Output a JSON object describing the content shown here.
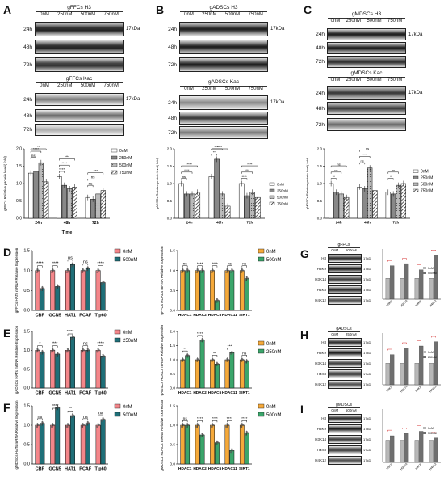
{
  "panels": {
    "A": {
      "letter": "A",
      "top_title": "gFFCs H3",
      "bottom_title": "gFFCs Kac",
      "conc": [
        "0nM",
        "250nM",
        "500nM",
        "750nM"
      ],
      "times": [
        "24h",
        "48h",
        "72h"
      ],
      "kda": "17kDa"
    },
    "B": {
      "letter": "B",
      "top_title": "gADSCs H3",
      "bottom_title": "gADSCs Kac",
      "conc": [
        "0nM",
        "250nM",
        "500nM",
        "750nM"
      ],
      "times": [
        "24h",
        "48h",
        "72h"
      ],
      "kda": "17kDa"
    },
    "C": {
      "letter": "C",
      "top_title": "gMDSCs H3",
      "bottom_title": "gMDSCs Kac",
      "conc": [
        "0nM",
        "250nM",
        "500nM",
        "750nM"
      ],
      "times": [
        "24h",
        "48h",
        "72h"
      ],
      "kda": "17kDa"
    },
    "D": {
      "letter": "D"
    },
    "E": {
      "letter": "E"
    },
    "F": {
      "letter": "F"
    },
    "G": {
      "letter": "G",
      "title": "gFFCs",
      "conc": [
        "0nM",
        "500nM"
      ],
      "bands": [
        "H3",
        "H3K9",
        "H3K14",
        "H4K8",
        "H4K12"
      ],
      "kda": "17kD"
    },
    "H": {
      "letter": "H",
      "title": "gADSCs",
      "conc": [
        "0nM",
        "250nM"
      ],
      "bands": [
        "H3",
        "H3K9",
        "H3K14",
        "H4K8",
        "H4K12"
      ],
      "kda": "17kD"
    },
    "I": {
      "letter": "I",
      "title": "gMDSCs",
      "conc": [
        "0nM",
        "500nM"
      ],
      "bands": [
        "H3",
        "H3K9",
        "H3K14",
        "H4K8",
        "H4K12"
      ],
      "kda": "17kD"
    }
  },
  "chart_data": [
    {
      "id": "A-bar",
      "type": "bar",
      "ylabel": "gFFCs Relative protein level( fold)",
      "xlabel": "Time",
      "categories": [
        "24h",
        "48h",
        "72h"
      ],
      "ylim": [
        0,
        2.0
      ],
      "legend": [
        "0nM",
        "250nM",
        "500nM",
        "750nM"
      ],
      "series": [
        {
          "name": "0nM",
          "values": [
            1.3,
            1.2,
            0.6
          ]
        },
        {
          "name": "250nM",
          "values": [
            1.35,
            0.95,
            0.55
          ]
        },
        {
          "name": "500nM",
          "values": [
            1.6,
            0.85,
            0.7
          ]
        },
        {
          "name": "750nM",
          "values": [
            1.05,
            0.9,
            0.8
          ]
        }
      ],
      "sig": [
        "ns",
        "****",
        "**",
        "****",
        "****",
        "**",
        "ns",
        "ns",
        "***"
      ]
    },
    {
      "id": "B-bar",
      "type": "bar",
      "ylabel": "gADSCs Relative protein level( fold)",
      "categories": [
        "24h",
        "48h",
        "72h"
      ],
      "ylim": [
        0,
        2.0
      ],
      "legend": [
        "0nM",
        "250nM",
        "500nM",
        "750nM"
      ],
      "series": [
        {
          "name": "0nM",
          "values": [
            1.0,
            1.2,
            1.0
          ]
        },
        {
          "name": "250nM",
          "values": [
            0.7,
            1.7,
            0.65
          ]
        },
        {
          "name": "500nM",
          "values": [
            0.7,
            0.7,
            0.75
          ]
        },
        {
          "name": "750nM",
          "values": [
            0.75,
            0.35,
            0.6
          ]
        }
      ],
      "sig": [
        "ns",
        "****",
        "****",
        "**",
        "****",
        "****",
        "****",
        "****",
        "****"
      ]
    },
    {
      "id": "C-bar",
      "type": "bar",
      "ylabel": "gMDSCs Relative protein level( fold)",
      "categories": [
        "24h",
        "48h",
        "72h"
      ],
      "ylim": [
        0,
        2.0
      ],
      "legend": [
        "0nM",
        "250nM",
        "500nM",
        "750nM"
      ],
      "series": [
        {
          "name": "0nM",
          "values": [
            1.0,
            0.9,
            0.75
          ]
        },
        {
          "name": "250nM",
          "values": [
            0.75,
            0.85,
            0.7
          ]
        },
        {
          "name": "500nM",
          "values": [
            0.7,
            1.45,
            0.95
          ]
        },
        {
          "name": "750nM",
          "values": [
            0.6,
            0.8,
            1.0
          ]
        }
      ],
      "sig": [
        "**",
        "ns",
        "ns",
        "ns",
        "***",
        "ns",
        "*",
        "ns"
      ]
    },
    {
      "id": "D-hat",
      "type": "bar",
      "ylabel": "gFFCs HATs mRNA Relative Expression",
      "categories": [
        "CBP",
        "GCN5",
        "HAT1",
        "PCAF",
        "Tip60"
      ],
      "ylim": [
        0,
        1.5
      ],
      "legend": [
        "0nM",
        "500nM"
      ],
      "colors": [
        "#f4868a",
        "#1f6f78"
      ],
      "series": [
        {
          "name": "0nM",
          "values": [
            1.0,
            1.0,
            1.0,
            1.0,
            1.0
          ]
        },
        {
          "name": "500nM",
          "values": [
            0.55,
            0.6,
            1.15,
            1.05,
            0.7
          ]
        }
      ],
      "sig": [
        "****",
        "****",
        "ns",
        "ns",
        "****"
      ]
    },
    {
      "id": "D-hdac",
      "type": "bar",
      "ylabel": "gFFCs HDACs mRNA Relative Expression",
      "categories": [
        "HDAC1",
        "HDAC2",
        "HDAC6",
        "HDAC11",
        "SIRT1"
      ],
      "ylim": [
        0,
        1.5
      ],
      "legend": [
        "0nM",
        "500nM"
      ],
      "colors": [
        "#f5a93a",
        "#3ba56b"
      ],
      "series": [
        {
          "name": "0nM",
          "values": [
            1.0,
            1.0,
            1.0,
            1.0,
            1.0
          ]
        },
        {
          "name": "500nM",
          "values": [
            1.0,
            1.0,
            0.25,
            1.0,
            0.8
          ]
        }
      ],
      "sig": [
        "ns",
        "****",
        "****",
        "ns",
        "ns"
      ]
    },
    {
      "id": "E-hat",
      "type": "bar",
      "ylabel": "gADSCs HATs mRNA Relative Expression",
      "categories": [
        "CBP",
        "GCN5",
        "HAT1",
        "PCAF",
        "Tip60"
      ],
      "ylim": [
        0,
        1.5
      ],
      "legend": [
        "0nM",
        "250nM"
      ],
      "colors": [
        "#f4868a",
        "#1f6f78"
      ],
      "series": [
        {
          "name": "0nM",
          "values": [
            1.0,
            1.0,
            1.0,
            1.0,
            1.0
          ]
        },
        {
          "name": "250nM",
          "values": [
            0.95,
            0.9,
            1.35,
            1.0,
            0.85
          ]
        }
      ],
      "sig": [
        "*",
        "***",
        "****",
        "ns",
        "****"
      ]
    },
    {
      "id": "E-hdac",
      "type": "bar",
      "ylabel": "gADSCs HDACs mRNA Relative Expression",
      "categories": [
        "HDAC1",
        "HDAC2",
        "HDAC6",
        "HDAC11",
        "SIRT1"
      ],
      "ylim": [
        0,
        2.0
      ],
      "legend": [
        "0nM",
        "250nM"
      ],
      "colors": [
        "#f5a93a",
        "#3ba56b"
      ],
      "series": [
        {
          "name": "0nM",
          "values": [
            1.0,
            1.0,
            1.0,
            1.0,
            1.0
          ]
        },
        {
          "name": "250nM",
          "values": [
            1.15,
            1.7,
            0.85,
            1.25,
            0.95
          ]
        }
      ],
      "sig": [
        "**",
        "****",
        "**",
        "***",
        "ns"
      ]
    },
    {
      "id": "F-hat",
      "type": "bar",
      "ylabel": "gMDSCs HATs mRNA Relative Expression",
      "categories": [
        "CBP",
        "GCN5",
        "HAT1",
        "PCAF",
        "Tip60"
      ],
      "ylim": [
        0,
        1.5
      ],
      "legend": [
        "0nM",
        "500nM"
      ],
      "colors": [
        "#f4868a",
        "#1f6f78"
      ],
      "series": [
        {
          "name": "0nM",
          "values": [
            1.0,
            1.0,
            1.0,
            1.0,
            1.0
          ]
        },
        {
          "name": "500nM",
          "values": [
            1.05,
            1.45,
            1.25,
            1.05,
            1.15
          ]
        }
      ],
      "sig": [
        "ns",
        "****",
        "**",
        "ns",
        "ns"
      ]
    },
    {
      "id": "F-hdac",
      "type": "bar",
      "ylabel": "gMDSCs HDACs mRNA Relative Expression",
      "categories": [
        "HDAC1",
        "HDAC2",
        "HDAC6",
        "HDAC11",
        "SIRT1"
      ],
      "ylim": [
        0,
        1.5
      ],
      "legend": [
        "0nM",
        "500nM"
      ],
      "colors": [
        "#f5a93a",
        "#3ba56b"
      ],
      "series": [
        {
          "name": "0nM",
          "values": [
            1.0,
            1.0,
            1.0,
            1.0,
            1.0
          ]
        },
        {
          "name": "500nM",
          "values": [
            1.0,
            0.75,
            0.55,
            0.35,
            0.8
          ]
        }
      ],
      "sig": [
        "ns",
        "****",
        "****",
        "****",
        "****"
      ]
    }
  ]
}
